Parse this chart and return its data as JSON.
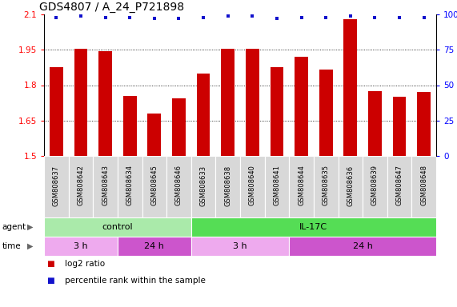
{
  "title": "GDS4807 / A_24_P721898",
  "samples": [
    "GSM808637",
    "GSM808642",
    "GSM808643",
    "GSM808634",
    "GSM808645",
    "GSM808646",
    "GSM808633",
    "GSM808638",
    "GSM808640",
    "GSM808641",
    "GSM808644",
    "GSM808635",
    "GSM808636",
    "GSM808639",
    "GSM808647",
    "GSM808648"
  ],
  "log2_values": [
    1.875,
    1.955,
    1.945,
    1.755,
    1.68,
    1.745,
    1.85,
    1.955,
    1.955,
    1.875,
    1.92,
    1.865,
    2.08,
    1.775,
    1.75,
    1.77
  ],
  "percentile_values": [
    98,
    99,
    98,
    98,
    97,
    97,
    98,
    99,
    99,
    97,
    98,
    98,
    99,
    98,
    98,
    98
  ],
  "bar_color": "#cc0000",
  "dot_color": "#1111cc",
  "ylim": [
    1.5,
    2.1
  ],
  "yticks_left": [
    1.5,
    1.65,
    1.8,
    1.95,
    2.1
  ],
  "ytick_left_labels": [
    "1.5",
    "1.65",
    "1.8",
    "1.95",
    "2.1"
  ],
  "yticks_right": [
    0,
    25,
    50,
    75,
    100
  ],
  "ytick_right_labels": [
    "0",
    "25",
    "50",
    "75",
    "100%"
  ],
  "gridlines": [
    1.65,
    1.8,
    1.95
  ],
  "agent_groups": [
    {
      "label": "control",
      "start": 0,
      "end": 6,
      "color": "#aaeaaa"
    },
    {
      "label": "IL-17C",
      "start": 6,
      "end": 16,
      "color": "#55dd55"
    }
  ],
  "time_groups": [
    {
      "label": "3 h",
      "start": 0,
      "end": 3,
      "color": "#eeaaee"
    },
    {
      "label": "24 h",
      "start": 3,
      "end": 6,
      "color": "#cc55cc"
    },
    {
      "label": "3 h",
      "start": 6,
      "end": 10,
      "color": "#eeaaee"
    },
    {
      "label": "24 h",
      "start": 10,
      "end": 16,
      "color": "#cc55cc"
    }
  ],
  "legend_items": [
    {
      "color": "#cc0000",
      "label": "log2 ratio"
    },
    {
      "color": "#1111cc",
      "label": "percentile rank within the sample"
    }
  ],
  "bar_width": 0.55,
  "background_color": "#ffffff",
  "plot_bg_color": "#ffffff",
  "title_fontsize": 10
}
